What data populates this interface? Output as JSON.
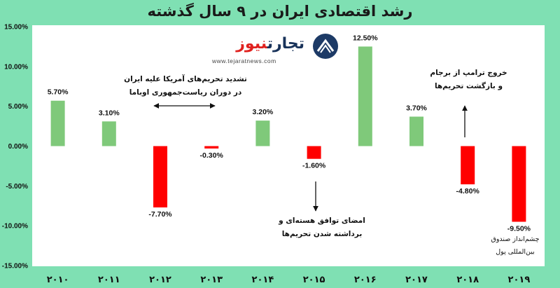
{
  "title": "رشد اقتصادی ایران در ۹ سال گذشته",
  "logo": {
    "name_part1": "تجارت",
    "name_part2": "نیوز",
    "url": "www.tejaratnews.com"
  },
  "annotations": {
    "obama_line1": "تشدید تحریم‌های آمریکا علیه ایران",
    "obama_line2": "در دوران ریاست‌جمهوری اوباما",
    "jcpoa_line1": "امضای توافق هسته‌ای و",
    "jcpoa_line2": "برداشته شدن تحریم‌ها",
    "trump_line1": "خروج ترامپ از برجام",
    "trump_line2": "و بازگشت تحریم‌ها",
    "imf_line1": "چشم‌انداز صندوق",
    "imf_line2": "بین‌المللی پول"
  },
  "chart_data": {
    "type": "bar",
    "title": "رشد اقتصادی ایران در ۹ سال گذشته",
    "categories": [
      "۲۰۱۰",
      "۲۰۱۱",
      "۲۰۱۲",
      "۲۰۱۳",
      "۲۰۱۴",
      "۲۰۱۵",
      "۲۰۱۶",
      "۲۰۱۷",
      "۲۰۱۸",
      "۲۰۱۹"
    ],
    "values": [
      5.7,
      3.1,
      -7.7,
      -0.3,
      3.2,
      -1.6,
      12.5,
      3.7,
      -4.8,
      -9.5
    ],
    "value_labels": [
      "5.70%",
      "3.10%",
      "-7.70%",
      "-0.30%",
      "3.20%",
      "-1.60%",
      "12.50%",
      "3.70%",
      "-4.80%",
      "-9.50%"
    ],
    "yticks": [
      15,
      10,
      5,
      0,
      -5,
      -10,
      -15
    ],
    "ytick_labels": [
      "15.00%",
      "10.00%",
      "5.00%",
      "0.00%",
      "-5.00%",
      "-10.00%",
      "-15.00%"
    ],
    "ylim": [
      -15,
      15
    ],
    "xlabel": "",
    "ylabel": "",
    "grid": false,
    "colors": {
      "positive": "#7fc97a",
      "negative": "#ff0000"
    }
  }
}
